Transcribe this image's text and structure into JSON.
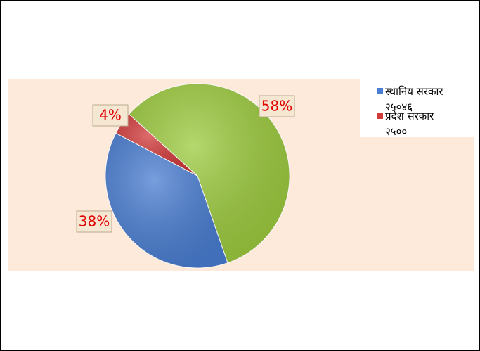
{
  "chart_data": {
    "type": "pie",
    "categories": [
      "स्थानिय सरकार २५०४६",
      "प्रदेश सरकार २५००",
      null
    ],
    "values": [
      38,
      4,
      58
    ],
    "value_labels": [
      "38%",
      "4%",
      "58%"
    ],
    "colors": [
      "#4a7ed2",
      "#d23a3a",
      "#9dcb3e"
    ],
    "legend": "top-right"
  }
}
